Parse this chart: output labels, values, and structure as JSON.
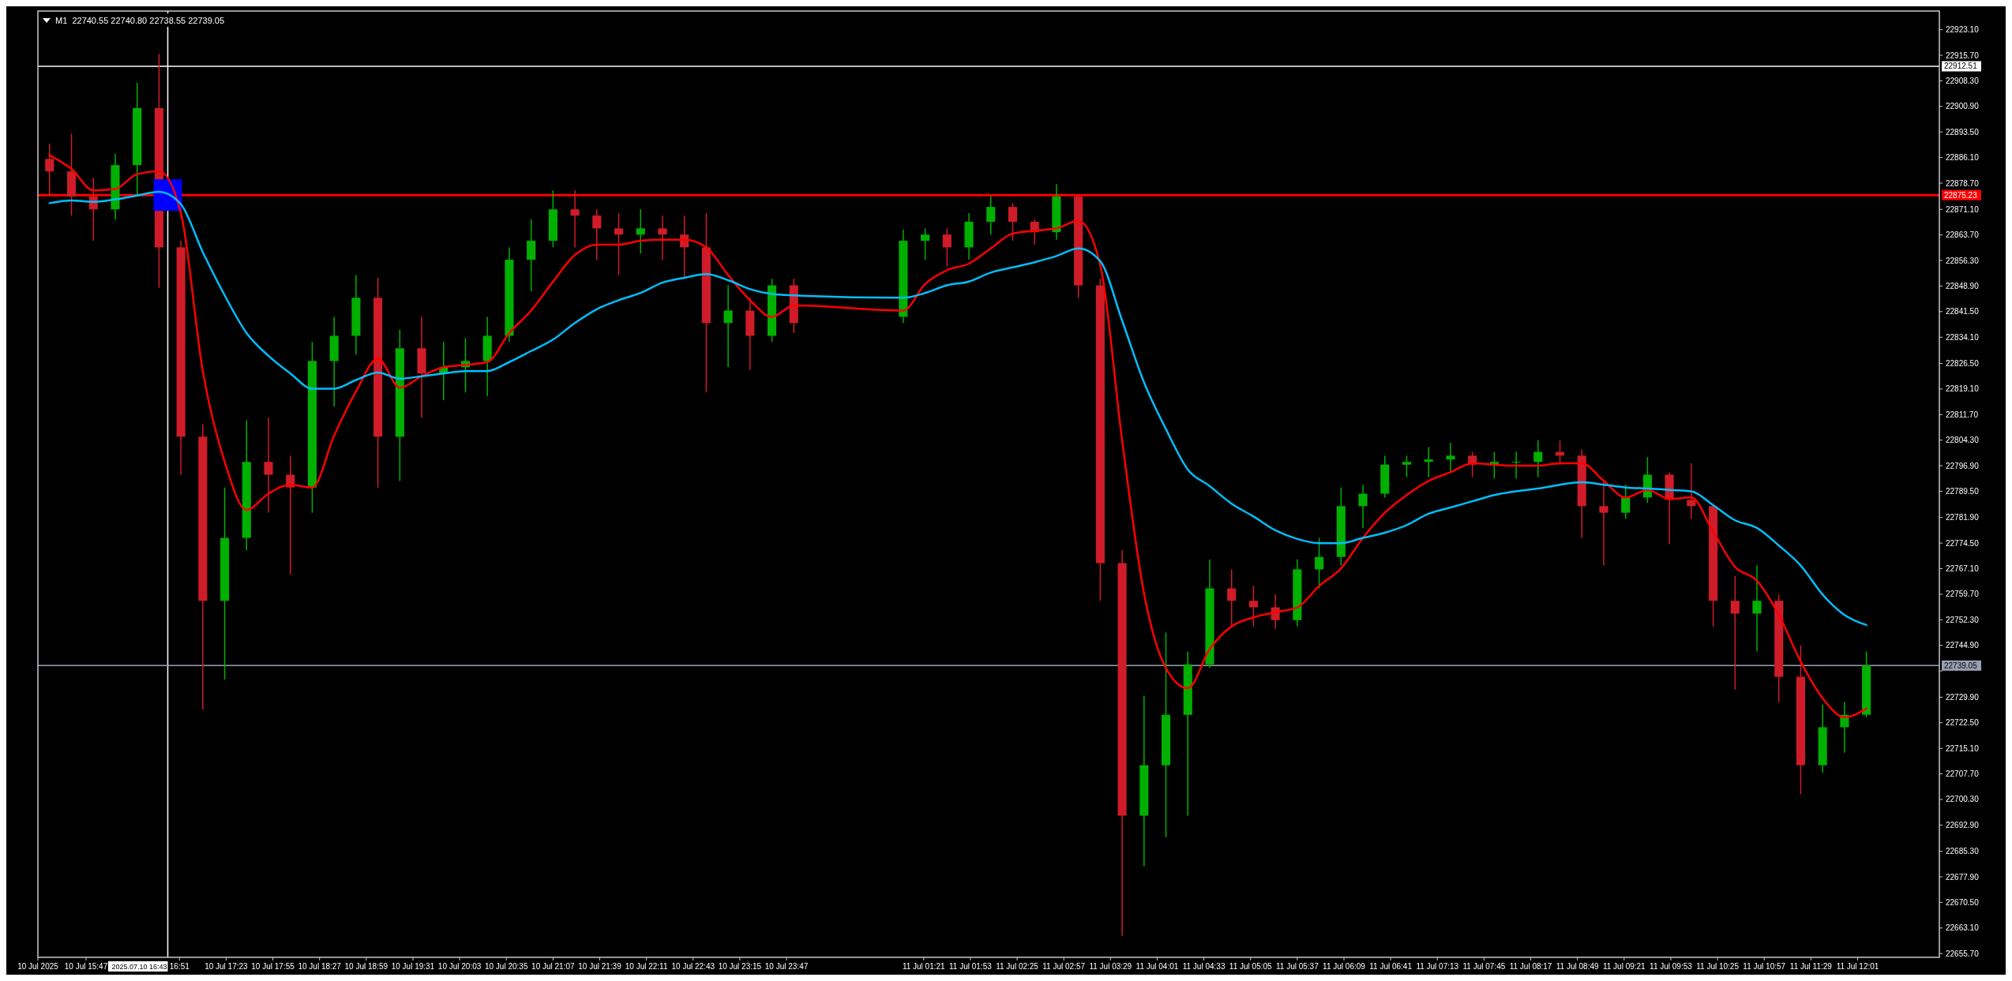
{
  "chart_data": {
    "type": "candlestick",
    "title": "M1  22740.55 22740.80 22738.55 22739.05",
    "x": [
      "2025-07-10T15:22",
      "2025-07-10T15:37",
      "2025-07-10T15:52",
      "2025-07-10T16:07",
      "2025-07-10T16:22",
      "2025-07-10T16:37",
      "2025-07-10T16:52",
      "2025-07-10T17:07",
      "2025-07-10T17:22",
      "2025-07-10T17:37",
      "2025-07-10T17:52",
      "2025-07-10T18:07",
      "2025-07-10T18:22",
      "2025-07-10T18:37",
      "2025-07-10T18:52",
      "2025-07-10T19:07",
      "2025-07-10T19:22",
      "2025-07-10T19:37",
      "2025-07-10T19:52",
      "2025-07-10T20:07",
      "2025-07-10T20:22",
      "2025-07-10T20:37",
      "2025-07-10T20:52",
      "2025-07-10T21:07",
      "2025-07-10T21:22",
      "2025-07-10T21:37",
      "2025-07-10T21:52",
      "2025-07-10T22:07",
      "2025-07-10T22:22",
      "2025-07-10T22:37",
      "2025-07-10T22:52",
      "2025-07-10T23:07",
      "2025-07-10T23:22",
      "2025-07-10T23:37",
      "2025-07-10T23:52",
      "2025-07-11T01:07",
      "2025-07-11T01:22",
      "2025-07-11T01:37",
      "2025-07-11T01:52",
      "2025-07-11T02:07",
      "2025-07-11T02:22",
      "2025-07-11T02:37",
      "2025-07-11T02:52",
      "2025-07-11T03:07",
      "2025-07-11T03:22",
      "2025-07-11T03:37",
      "2025-07-11T03:52",
      "2025-07-11T04:07",
      "2025-07-11T04:22",
      "2025-07-11T04:37",
      "2025-07-11T04:52",
      "2025-07-11T05:07",
      "2025-07-11T05:22",
      "2025-07-11T05:37",
      "2025-07-11T05:52",
      "2025-07-11T06:07",
      "2025-07-11T06:22",
      "2025-07-11T06:37",
      "2025-07-11T06:52",
      "2025-07-11T07:07",
      "2025-07-11T07:22",
      "2025-07-11T07:37",
      "2025-07-11T07:52",
      "2025-07-11T08:07",
      "2025-07-11T08:22",
      "2025-07-11T08:37",
      "2025-07-11T08:52",
      "2025-07-11T09:07",
      "2025-07-11T09:22",
      "2025-07-11T09:37",
      "2025-07-11T09:52",
      "2025-07-11T10:07",
      "2025-07-11T10:22",
      "2025-07-11T10:37",
      "2025-07-11T10:52",
      "2025-07-11T11:07",
      "2025-07-11T11:22",
      "2025-07-11T11:37",
      "2025-07-11T11:52",
      "2025-07-11T12:07"
    ],
    "ohlc": [
      [
        22885.7,
        22890.1,
        22874.8,
        22882.1
      ],
      [
        22882.1,
        22893.0,
        22869.3,
        22874.8
      ],
      [
        22874.8,
        22880.2,
        22862.0,
        22871.1
      ],
      [
        22871.1,
        22887.2,
        22868.2,
        22883.9
      ],
      [
        22883.9,
        22907.7,
        22874.8,
        22900.4
      ],
      [
        22900.4,
        22916.1,
        22848.4,
        22860.1
      ],
      [
        22860.1,
        22862.0,
        22794.3,
        22805.3
      ],
      [
        22805.3,
        22808.9,
        22726.3,
        22757.8
      ],
      [
        22757.8,
        22790.6,
        22735.0,
        22776.0
      ],
      [
        22776.0,
        22810.0,
        22772.4,
        22798.0
      ],
      [
        22798.0,
        22810.8,
        22783.3,
        22794.3
      ],
      [
        22794.3,
        22799.8,
        22765.4,
        22790.6
      ],
      [
        22790.6,
        22832.7,
        22783.3,
        22827.2
      ],
      [
        22827.2,
        22840.0,
        22814.0,
        22834.5
      ],
      [
        22834.5,
        22852.1,
        22829.0,
        22845.5
      ],
      [
        22845.5,
        22851.3,
        22790.6,
        22805.3
      ],
      [
        22805.3,
        22836.3,
        22792.5,
        22830.9
      ],
      [
        22830.9,
        22840.0,
        22810.8,
        22823.6
      ],
      [
        22823.6,
        22832.7,
        22815.9,
        22825.4
      ],
      [
        22825.4,
        22833.8,
        22818.1,
        22827.2
      ],
      [
        22827.2,
        22840.0,
        22817.0,
        22834.5
      ],
      [
        22834.5,
        22860.1,
        22832.7,
        22856.5
      ],
      [
        22856.5,
        22868.2,
        22847.3,
        22862.0
      ],
      [
        22862.0,
        22876.6,
        22860.1,
        22871.1
      ],
      [
        22871.1,
        22876.6,
        22860.1,
        22869.3
      ],
      [
        22869.3,
        22871.1,
        22856.5,
        22865.6
      ],
      [
        22865.6,
        22870.0,
        22852.1,
        22863.8
      ],
      [
        22863.8,
        22871.1,
        22858.3,
        22865.6
      ],
      [
        22865.6,
        22869.3,
        22856.5,
        22863.8
      ],
      [
        22863.8,
        22869.3,
        22851.0,
        22860.1
      ],
      [
        22860.1,
        22870.0,
        22818.1,
        22838.2
      ],
      [
        22838.2,
        22849.1,
        22825.4,
        22841.8
      ],
      [
        22841.8,
        22845.5,
        22824.7,
        22834.5
      ],
      [
        22834.5,
        22851.0,
        22832.7,
        22849.1
      ],
      [
        22849.1,
        22851.0,
        22835.3,
        22838.2
      ],
      [
        22840.0,
        22865.2,
        22838.2,
        22862.0
      ],
      [
        22862.0,
        22865.6,
        22856.5,
        22863.8
      ],
      [
        22863.8,
        22865.6,
        22854.6,
        22860.1
      ],
      [
        22860.1,
        22870.0,
        22856.5,
        22867.5
      ],
      [
        22867.5,
        22874.8,
        22863.8,
        22871.8
      ],
      [
        22871.8,
        22872.9,
        22862.0,
        22867.5
      ],
      [
        22867.5,
        22868.2,
        22860.9,
        22864.5
      ],
      [
        22864.5,
        22878.4,
        22862.3,
        22874.8
      ],
      [
        22874.8,
        22875.5,
        22845.5,
        22849.1
      ],
      [
        22849.1,
        22851.0,
        22757.8,
        22768.7
      ],
      [
        22768.7,
        22772.4,
        22660.8,
        22695.6
      ],
      [
        22695.6,
        22730.3,
        22681.0,
        22710.2
      ],
      [
        22710.2,
        22748.6,
        22689.3,
        22724.8
      ],
      [
        22724.8,
        22743.1,
        22695.6,
        22739.4
      ],
      [
        22739.4,
        22769.8,
        22738.3,
        22761.4
      ],
      [
        22761.4,
        22766.9,
        22750.4,
        22757.8
      ],
      [
        22757.8,
        22762.1,
        22750.4,
        22755.9
      ],
      [
        22755.9,
        22759.6,
        22749.7,
        22752.2
      ],
      [
        22752.2,
        22769.8,
        22750.4,
        22766.9
      ],
      [
        22766.9,
        22776.0,
        22761.4,
        22770.5
      ],
      [
        22770.5,
        22790.6,
        22768.0,
        22785.2
      ],
      [
        22785.2,
        22791.4,
        22778.9,
        22788.8
      ],
      [
        22788.8,
        22799.8,
        22787.7,
        22797.2
      ],
      [
        22797.2,
        22799.8,
        22793.6,
        22798.0
      ],
      [
        22798.0,
        22802.3,
        22793.6,
        22798.7
      ],
      [
        22798.7,
        22803.5,
        22795.0,
        22799.8
      ],
      [
        22799.8,
        22800.9,
        22793.6,
        22797.2
      ],
      [
        22797.2,
        22800.9,
        22793.2,
        22798.0
      ],
      [
        22798.0,
        22800.9,
        22793.2,
        22798.0
      ],
      [
        22798.0,
        22804.2,
        22793.6,
        22800.9
      ],
      [
        22800.9,
        22804.2,
        22797.2,
        22799.8
      ],
      [
        22799.8,
        22801.6,
        22776.0,
        22785.2
      ],
      [
        22785.2,
        22792.5,
        22768.0,
        22783.3
      ],
      [
        22783.3,
        22791.4,
        22781.5,
        22787.7
      ],
      [
        22787.7,
        22799.4,
        22786.2,
        22794.3
      ],
      [
        22794.3,
        22795.0,
        22774.2,
        22787.0
      ],
      [
        22787.0,
        22797.6,
        22781.5,
        22785.2
      ],
      [
        22785.2,
        22785.5,
        22750.4,
        22757.8
      ],
      [
        22757.8,
        22765.0,
        22732.1,
        22754.1
      ],
      [
        22754.1,
        22768.0,
        22743.1,
        22757.8
      ],
      [
        22757.8,
        22759.6,
        22728.5,
        22735.8
      ],
      [
        22735.8,
        22744.9,
        22701.8,
        22710.2
      ],
      [
        22710.2,
        22727.7,
        22708.0,
        22721.2
      ],
      [
        22721.2,
        22728.5,
        22713.8,
        22724.8
      ],
      [
        22724.8,
        22743.1,
        22724.1,
        22739.1
      ]
    ],
    "colors": [
      "#d01c28",
      "#d01c28",
      "#d01c28",
      "#00b000",
      "#00b000",
      "#d01c28",
      "#d01c28",
      "#d01c28",
      "#00b000",
      "#00b000",
      "#d01c28",
      "#d01c28",
      "#00b000",
      "#00b000",
      "#00b000",
      "#d01c28",
      "#00b000",
      "#d01c28",
      "#00b000",
      "#00b000",
      "#00b000",
      "#00b000",
      "#00b000",
      "#00b000",
      "#d01c28",
      "#d01c28",
      "#d01c28",
      "#00b000",
      "#d01c28",
      "#d01c28",
      "#d01c28",
      "#00b000",
      "#d01c28",
      "#00b000",
      "#d01c28",
      "#00b000",
      "#00b000",
      "#d01c28",
      "#00b000",
      "#00b000",
      "#d01c28",
      "#d01c28",
      "#00b000",
      "#d01c28",
      "#d01c28",
      "#d01c28",
      "#00b000",
      "#00b000",
      "#00b000",
      "#00b000",
      "#d01c28",
      "#d01c28",
      "#d01c28",
      "#00b000",
      "#00b000",
      "#00b000",
      "#00b000",
      "#00b000",
      "#00b000",
      "#00b000",
      "#00b000",
      "#d01c28",
      "#00b000",
      "#00b000",
      "#00b000",
      "#d01c28",
      "#d01c28",
      "#d01c28",
      "#00b000",
      "#00b000",
      "#d01c28",
      "#d01c28",
      "#d01c28",
      "#d01c28",
      "#00b000",
      "#d01c28",
      "#d01c28",
      "#00b000",
      "#00b000",
      "#00b000"
    ],
    "series": [
      {
        "type": "line",
        "color": "#ff0000",
        "values": [
          22886.8,
          22882.8,
          22876.6,
          22877.0,
          22881.3,
          22882.1,
          22870.0,
          22824.3,
          22798.0,
          22784.1,
          22788.8,
          22791.4,
          22790.6,
          22805.6,
          22818.4,
          22827.9,
          22819.5,
          22822.8,
          22825.4,
          22826.1,
          22826.9,
          22835.3,
          22841.8,
          22850.2,
          22857.9,
          22860.9,
          22860.9,
          22862.0,
          22862.3,
          22862.3,
          22860.1,
          22852.1,
          22844.8,
          22840.0,
          22843.3,
          22841.8,
          22849.5,
          22853.5,
          22855.4,
          22859.8,
          22864.1,
          22864.9,
          22865.6,
          22867.8,
          22855.0,
          22804.2,
          22759.9,
          22738.3,
          22732.5,
          22743.8,
          22750.4,
          22753.0,
          22754.5,
          22755.9,
          22762.1,
          22767.2,
          22776.0,
          22783.3,
          22788.4,
          22792.5,
          22795.0,
          22797.6,
          22797.2,
          22796.9,
          22796.9,
          22797.6,
          22797.6,
          22792.5,
          22787.7,
          22789.9,
          22787.3,
          22787.7,
          22777.8,
          22767.6,
          22763.6,
          22753.7,
          22740.2,
          22729.6,
          22724.1,
          22726.6
        ]
      },
      {
        "type": "line",
        "color": "#00bfff",
        "values": [
          22872.9,
          22873.7,
          22873.3,
          22874.0,
          22875.1,
          22876.2,
          22872.6,
          22858.7,
          22846.2,
          22835.3,
          22828.7,
          22823.6,
          22819.2,
          22819.2,
          22821.7,
          22823.9,
          22822.1,
          22822.8,
          22823.6,
          22824.3,
          22824.3,
          22826.9,
          22830.1,
          22833.4,
          22838.2,
          22842.2,
          22844.8,
          22846.9,
          22849.9,
          22851.3,
          22852.4,
          22850.6,
          22848.0,
          22846.6,
          22846.2,
          22845.5,
          22846.9,
          22849.1,
          22850.2,
          22852.8,
          22854.3,
          22855.8,
          22857.6,
          22859.8,
          22856.1,
          22838.9,
          22821.0,
          22807.5,
          22795.8,
          22791.0,
          22785.9,
          22782.2,
          22778.2,
          22775.7,
          22774.5,
          22774.5,
          22776.0,
          22777.5,
          22779.7,
          22783.0,
          22784.8,
          22786.6,
          22788.4,
          22789.5,
          22790.3,
          22791.4,
          22792.1,
          22791.4,
          22790.6,
          22790.3,
          22789.9,
          22789.5,
          22785.5,
          22781.1,
          22778.9,
          22773.8,
          22768.0,
          22759.6,
          22753.7,
          22750.8
        ]
      }
    ],
    "xlim": [
      "2025-07-10T15:14",
      "2025-07-11T12:57"
    ],
    "xticks": [
      {
        "value": "2025-07-10T15:14",
        "label": "10 Jul 2025"
      },
      {
        "value": "2025-07-10T15:47",
        "label": "10 Jul 15:47"
      },
      {
        "value": "2025-07-10T16:51",
        "label": "16:51"
      },
      {
        "value": "2025-07-10T17:23",
        "label": "10 Jul 17:23"
      },
      {
        "value": "2025-07-10T17:55",
        "label": "10 Jul 17:55"
      },
      {
        "value": "2025-07-10T18:27",
        "label": "10 Jul 18:27"
      },
      {
        "value": "2025-07-10T18:59",
        "label": "10 Jul 18:59"
      },
      {
        "value": "2025-07-10T19:31",
        "label": "10 Jul 19:31"
      },
      {
        "value": "2025-07-10T20:03",
        "label": "10 Jul 20:03"
      },
      {
        "value": "2025-07-10T20:35",
        "label": "10 Jul 20:35"
      },
      {
        "value": "2025-07-10T21:07",
        "label": "10 Jul 21:07"
      },
      {
        "value": "2025-07-10T21:39",
        "label": "10 Jul 21:39"
      },
      {
        "value": "2025-07-10T22:11",
        "label": "10 Jul 22:11"
      },
      {
        "value": "2025-07-10T22:43",
        "label": "10 Jul 22:43"
      },
      {
        "value": "2025-07-10T23:15",
        "label": "10 Jul 23:15"
      },
      {
        "value": "2025-07-10T23:47",
        "label": "10 Jul 23:47"
      },
      {
        "value": "2025-07-11T01:21",
        "label": "11 Jul 01:21"
      },
      {
        "value": "2025-07-11T01:53",
        "label": "11 Jul 01:53"
      },
      {
        "value": "2025-07-11T02:25",
        "label": "11 Jul 02:25"
      },
      {
        "value": "2025-07-11T02:57",
        "label": "11 Jul 02:57"
      },
      {
        "value": "2025-07-11T03:29",
        "label": "11 Jul 03:29"
      },
      {
        "value": "2025-07-11T04:01",
        "label": "11 Jul 04:01"
      },
      {
        "value": "2025-07-11T04:33",
        "label": "11 Jul 04:33"
      },
      {
        "value": "2025-07-11T05:05",
        "label": "11 Jul 05:05"
      },
      {
        "value": "2025-07-11T05:37",
        "label": "11 Jul 05:37"
      },
      {
        "value": "2025-07-11T06:09",
        "label": "11 Jul 06:09"
      },
      {
        "value": "2025-07-11T06:41",
        "label": "11 Jul 06:41"
      },
      {
        "value": "2025-07-11T07:13",
        "label": "11 Jul 07:13"
      },
      {
        "value": "2025-07-11T07:45",
        "label": "11 Jul 07:45"
      },
      {
        "value": "2025-07-11T08:17",
        "label": "11 Jul 08:17"
      },
      {
        "value": "2025-07-11T08:49",
        "label": "11 Jul 08:49"
      },
      {
        "value": "2025-07-11T09:21",
        "label": "11 Jul 09:21"
      },
      {
        "value": "2025-07-11T09:53",
        "label": "11 Jul 09:53"
      },
      {
        "value": "2025-07-11T10:25",
        "label": "11 Jul 10:25"
      },
      {
        "value": "2025-07-11T10:57",
        "label": "11 Jul 10:57"
      },
      {
        "value": "2025-07-11T11:29",
        "label": "11 Jul 11:29"
      },
      {
        "value": "2025-07-11T12:01",
        "label": "11 Jul 12:01"
      }
    ],
    "ylim": [
      22654.6,
      22928.5
    ],
    "yticks": [
      {
        "value": 22655.7,
        "label": "22655.70"
      },
      {
        "value": 22663.1,
        "label": "22663.10"
      },
      {
        "value": 22670.5,
        "label": "22670.50"
      },
      {
        "value": 22677.9,
        "label": "22677.90"
      },
      {
        "value": 22685.3,
        "label": "22685.30"
      },
      {
        "value": 22692.9,
        "label": "22692.90"
      },
      {
        "value": 22700.3,
        "label": "22700.30"
      },
      {
        "value": 22707.7,
        "label": "22707.70"
      },
      {
        "value": 22715.1,
        "label": "22715.10"
      },
      {
        "value": 22722.5,
        "label": "22722.50"
      },
      {
        "value": 22729.9,
        "label": "22729.90"
      },
      {
        "value": 22737.5,
        "label": null
      },
      {
        "value": 22744.9,
        "label": "22744.90"
      },
      {
        "value": 22752.3,
        "label": "22752.30"
      },
      {
        "value": 22759.7,
        "label": "22759.70"
      },
      {
        "value": 22767.1,
        "label": "22767.10"
      },
      {
        "value": 22774.5,
        "label": "22774.50"
      },
      {
        "value": 22781.9,
        "label": "22781.90"
      },
      {
        "value": 22789.5,
        "label": "22789.50"
      },
      {
        "value": 22796.9,
        "label": "22796.90"
      },
      {
        "value": 22804.3,
        "label": "22804.30"
      },
      {
        "value": 22811.7,
        "label": "22811.70"
      },
      {
        "value": 22819.1,
        "label": "22819.10"
      },
      {
        "value": 22826.5,
        "label": "22826.50"
      },
      {
        "value": 22834.1,
        "label": "22834.10"
      },
      {
        "value": 22841.5,
        "label": "22841.50"
      },
      {
        "value": 22848.9,
        "label": "22848.90"
      },
      {
        "value": 22856.3,
        "label": "22856.30"
      },
      {
        "value": 22863.7,
        "label": "22863.70"
      },
      {
        "value": 22871.1,
        "label": "22871.10"
      },
      {
        "value": 22878.7,
        "label": "22878.70"
      },
      {
        "value": 22886.1,
        "label": "22886.10"
      },
      {
        "value": 22893.5,
        "label": "22893.50"
      },
      {
        "value": 22900.9,
        "label": "22900.90"
      },
      {
        "value": 22908.3,
        "label": "22908.30"
      },
      {
        "value": 22915.7,
        "label": "22915.70"
      },
      {
        "value": 22923.1,
        "label": "22923.10"
      }
    ],
    "ref_lines": [
      {
        "axis": "x",
        "value": "2025-07-10T16:43",
        "label": "2025.07.10 16:43",
        "color": "#ffffff"
      },
      {
        "axis": "y",
        "value": 22912.51,
        "label": "22912.51",
        "color": "#ffffff"
      },
      {
        "axis": "y",
        "value": 22875.23,
        "label": "22875.23",
        "color": "#ff0000"
      },
      {
        "axis": "y",
        "value": 22739.05,
        "label": "22739.05",
        "color": "#9aa0b4"
      }
    ]
  }
}
